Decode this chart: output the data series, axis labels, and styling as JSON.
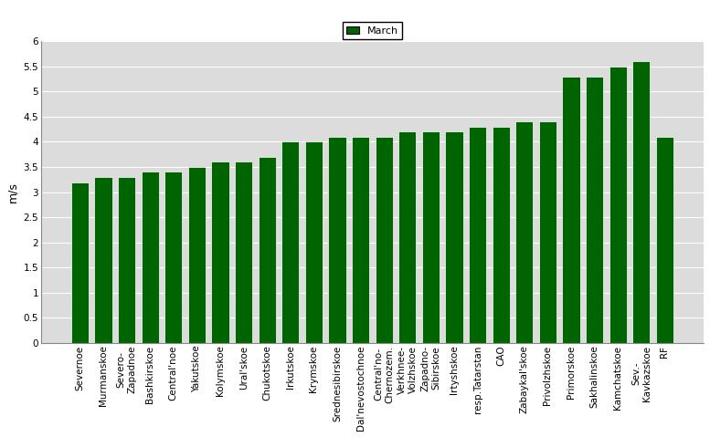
{
  "categories": [
    "Severnoe",
    "Murmanskoe",
    "Severo-\nZapadnoe",
    "Bashkirskoe",
    "Central'noe",
    "Yakutskoe",
    "Kolymskoe",
    "Ural'skoe",
    "Chukotskoe",
    "Irkutskoe",
    "Krymskoe",
    "Srednesibirskoe",
    "Dal'nevostochnoe",
    "Central'no-\nChernozem.",
    "Verkhnee-\nVolzhskoe",
    "Zapadno-\nSibirskoe",
    "Irtyshskoe",
    "resp.Tatarstan",
    "CAO",
    "Zabaykal'skoe",
    "Privolzhskoe",
    "Primorskoe",
    "Sakhalinskoe",
    "Kamchatskoe",
    "Sev.-\nKavkazskoe",
    "RF"
  ],
  "values": [
    3.2,
    3.3,
    3.3,
    3.4,
    3.4,
    3.5,
    3.6,
    3.6,
    3.7,
    4.0,
    4.0,
    4.1,
    4.1,
    4.1,
    4.2,
    4.2,
    4.2,
    4.3,
    4.3,
    4.4,
    4.4,
    5.3,
    5.3,
    5.5,
    5.6,
    4.1
  ],
  "bar_color": "#006400",
  "plot_bg_color": "#dcdcdc",
  "fig_bg_color": "#ffffff",
  "ylabel": "m/s",
  "ylim": [
    0,
    6
  ],
  "ytick_values": [
    0,
    0.5,
    1.0,
    1.5,
    2.0,
    2.5,
    3.0,
    3.5,
    4.0,
    4.5,
    5.0,
    5.5,
    6.0
  ],
  "ytick_labels": [
    "0",
    "0.5",
    "1",
    "1.5",
    "2",
    "2.5",
    "3",
    "3.5",
    "4",
    "4.5",
    "5",
    "5.5",
    "6"
  ],
  "legend_label": "March",
  "legend_color": "#006400",
  "tick_fontsize": 7.5,
  "ylabel_fontsize": 9
}
